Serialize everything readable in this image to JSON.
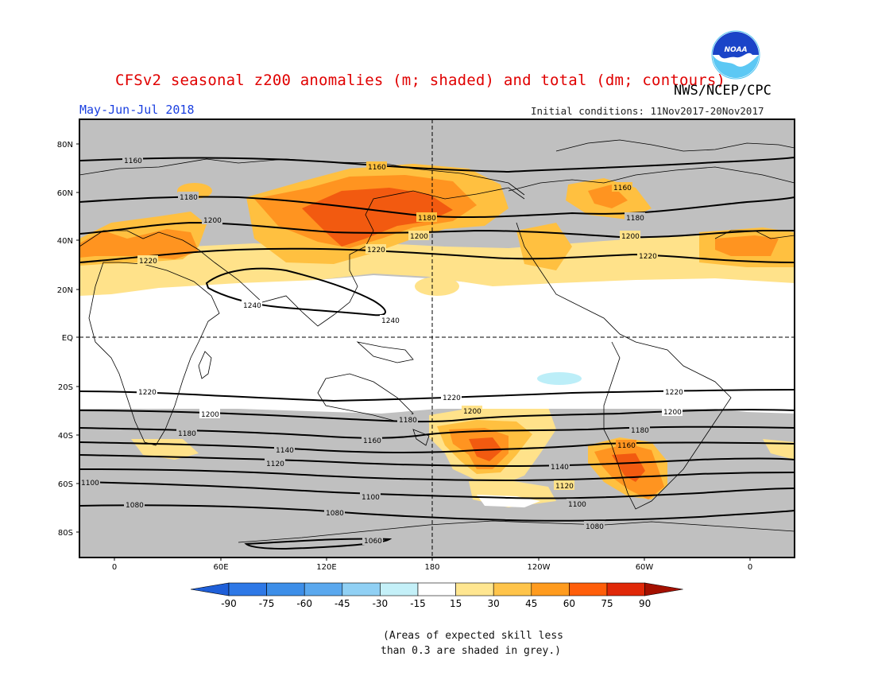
{
  "title": "CFSv2 seasonal z200 anomalies (m; shaded) and total (dm; contours)",
  "agency": "NWS/NCEP/CPC",
  "period": "May-Jun-Jul 2018",
  "initial_conditions": "Initial conditions: 11Nov2017-20Nov2017",
  "logo_text": "NOAA",
  "note_line1": "(Areas of expected skill less",
  "note_line2": "than 0.3 are shaded in grey.)",
  "map": {
    "lat_ticks": [
      "80N",
      "60N",
      "40N",
      "20N",
      "EQ",
      "20S",
      "40S",
      "60S",
      "80S"
    ],
    "lon_ticks": [
      "0",
      "60E",
      "120E",
      "180",
      "120W",
      "60W",
      "0"
    ],
    "contour_labels_nh": [
      "1160",
      "1160",
      "1160",
      "1180",
      "1180",
      "1180",
      "1200",
      "1200",
      "1200",
      "1220",
      "1220",
      "1220",
      "1240",
      "1240"
    ],
    "contour_labels_sh": [
      "1220",
      "1220",
      "1220",
      "1200",
      "1200",
      "1200",
      "1180",
      "1180",
      "1180",
      "1160",
      "1160",
      "1140",
      "1140",
      "1120",
      "1120",
      "1100",
      "1100",
      "1100",
      "1080",
      "1080",
      "1080",
      "1060"
    ]
  },
  "colorbar": {
    "labels": [
      "-90",
      "-75",
      "-60",
      "-45",
      "-30",
      "-15",
      "15",
      "30",
      "45",
      "60",
      "75",
      "90"
    ],
    "colors": [
      "#1f5fd8",
      "#2e78e6",
      "#3d8ee8",
      "#5aa8ee",
      "#90d0f4",
      "#c4f0f8",
      "#ffffff",
      "#ffe690",
      "#ffc44a",
      "#ff9b1e",
      "#ff5e0a",
      "#e02808",
      "#a41000"
    ]
  },
  "shading_colors": {
    "skill_grey": "#c0c0c0",
    "light_yellow": "#ffe28a",
    "yellow_orange": "#ffc040",
    "orange": "#ff9420",
    "red_orange": "#f25a10",
    "light_blue": "#bceef8"
  }
}
